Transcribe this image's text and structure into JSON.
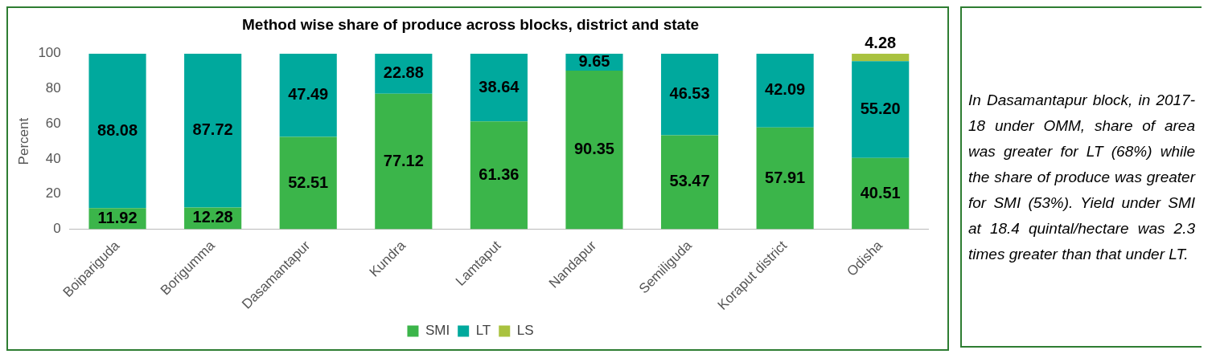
{
  "chart_data": {
    "type": "bar",
    "title": "Method wise share of produce across blocks, district and state",
    "ylabel": "Percent",
    "categories": [
      "Boipariguda",
      "Borigumma",
      "Dasamantapur",
      "Kundra",
      "Lamtaput",
      "Nandapur",
      "Semiliguda",
      "Koraput district",
      "Odisha"
    ],
    "series": [
      {
        "name": "SMI",
        "color": "#3bb54a",
        "values": [
          11.92,
          12.28,
          52.51,
          77.12,
          61.36,
          90.35,
          53.47,
          57.91,
          40.51
        ],
        "value_labels": [
          "11.92",
          "12.28",
          "52.51",
          "77.12",
          "61.36",
          "90.35",
          "53.47",
          "57.91",
          "40.51"
        ]
      },
      {
        "name": "LT",
        "color": "#00a99d",
        "values": [
          88.08,
          87.72,
          47.49,
          22.88,
          38.64,
          9.65,
          46.53,
          42.09,
          55.2
        ],
        "value_labels": [
          "88.08",
          "87.72",
          "47.49",
          "22.88",
          "38.64",
          "9.65",
          "46.53",
          "42.09",
          "55.20"
        ]
      },
      {
        "name": "LS",
        "color": "#a9c23f",
        "values": [
          null,
          null,
          null,
          null,
          null,
          null,
          null,
          null,
          4.28
        ],
        "value_labels": [
          null,
          null,
          null,
          null,
          null,
          null,
          null,
          null,
          "4.28"
        ]
      }
    ],
    "stacked": true,
    "ylim": [
      0,
      100
    ],
    "yticks": [
      0,
      20,
      40,
      60,
      80,
      100
    ],
    "grid": false,
    "legend": "bottom",
    "annotations": [
      "In Dasamantapur block, in 2017-18 under OMM, share of area was greater for LT (68%) while the share of produce was greater for SMI (53%). Yield under SMI at 18.4 quintal/hectare was 2.3 times greater than that under LT."
    ]
  }
}
